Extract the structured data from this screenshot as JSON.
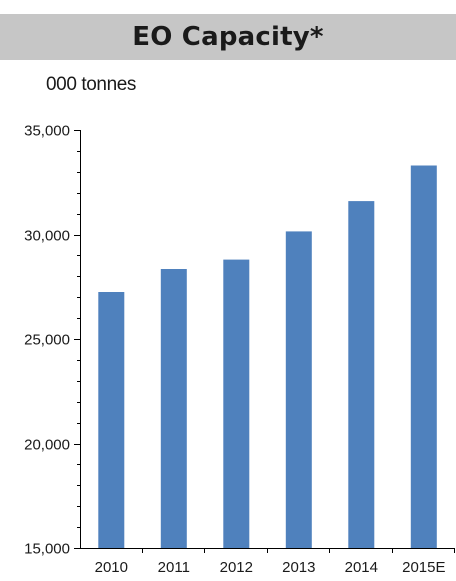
{
  "title": "EO Capacity*",
  "unit_label": "000 tonnes",
  "chart_data": {
    "type": "bar",
    "title": "EO Capacity*",
    "ylabel": "000 tonnes",
    "xlabel": "",
    "categories": [
      "2010",
      "2011",
      "2012",
      "2013",
      "2014",
      "2015E"
    ],
    "values": [
      27250,
      28350,
      28800,
      30150,
      31600,
      33300
    ],
    "ylim": [
      15000,
      35000
    ],
    "yticks": [
      15000,
      20000,
      25000,
      30000,
      35000
    ],
    "ytick_labels": [
      "15,000",
      "20,000",
      "25,000",
      "30,000",
      "35,000"
    ],
    "grid": false,
    "bar_color": "#4f81bd"
  }
}
